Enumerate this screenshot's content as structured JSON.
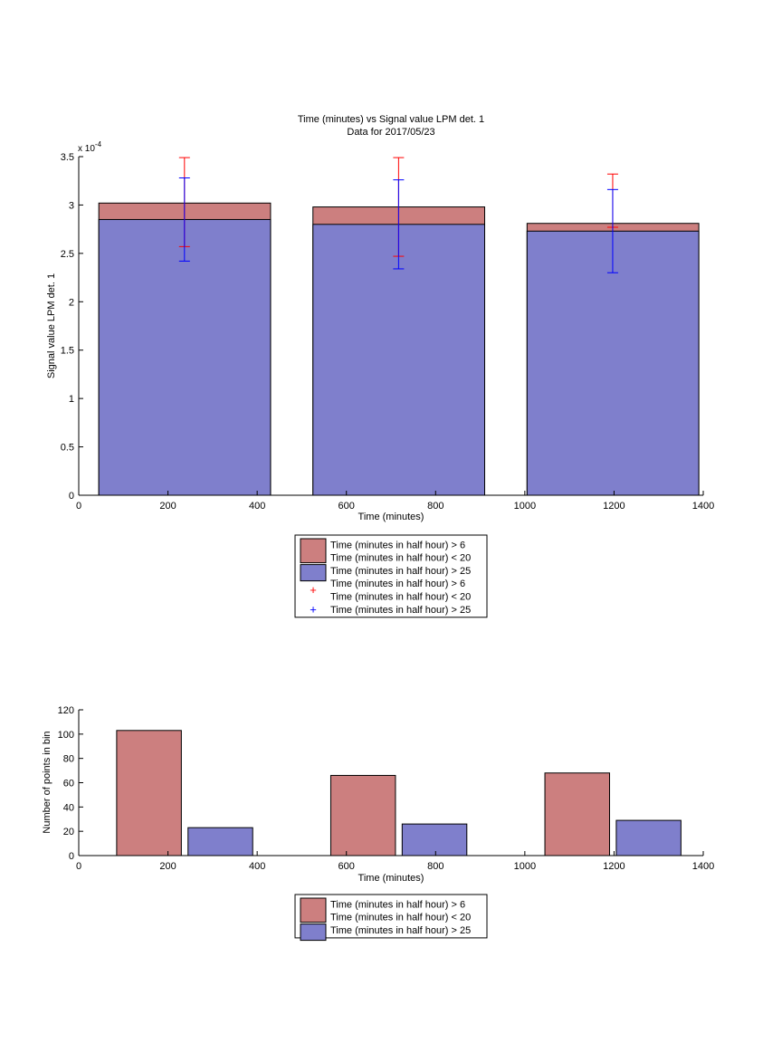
{
  "colors": {
    "red_fill": "#cc7f7f",
    "blue_fill": "#7f7fcc",
    "red_err": "#ff0000",
    "blue_err": "#0000ff"
  },
  "chart_data": [
    {
      "type": "bar",
      "title": "Time (minutes) vs Signal value LPM det. 1",
      "subtitle": "Data for 2017/05/23",
      "xlabel": "Time (minutes)",
      "ylabel": "Signal value LPM det. 1",
      "exponent_label": "x 10",
      "exponent_power": "-4",
      "xlim": [
        0,
        1400
      ],
      "ylim": [
        0,
        3.5
      ],
      "scale": "1e-4",
      "xticks": [
        "0",
        "200",
        "400",
        "600",
        "800",
        "1000",
        "1200",
        "1400"
      ],
      "yticks": [
        "0",
        "0.5",
        "1",
        "1.5",
        "2",
        "2.5",
        "3",
        "3.5"
      ],
      "bars": [
        {
          "x_start": 45,
          "x_end": 430,
          "red": 3.02,
          "blue": 2.85
        },
        {
          "x_start": 525,
          "x_end": 910,
          "red": 2.98,
          "blue": 2.8
        },
        {
          "x_start": 1005,
          "x_end": 1390,
          "red": 2.81,
          "blue": 2.73
        }
      ],
      "error_bars": [
        {
          "series": "red",
          "x": 237,
          "low": 2.57,
          "high": 3.49
        },
        {
          "series": "blue",
          "x": 237,
          "low": 2.42,
          "high": 3.28
        },
        {
          "series": "red",
          "x": 717,
          "low": 2.47,
          "high": 3.49
        },
        {
          "series": "blue",
          "x": 717,
          "low": 2.34,
          "high": 3.26
        },
        {
          "series": "red",
          "x": 1197,
          "low": 2.77,
          "high": 3.32
        },
        {
          "series": "blue",
          "x": 1197,
          "low": 2.3,
          "high": 3.16
        }
      ],
      "legend": {
        "position": "below",
        "entries": [
          {
            "kind": "patch",
            "series": "red",
            "lines": [
              "Time (minutes in half hour) > 6",
              "Time (minutes in half hour) < 20"
            ]
          },
          {
            "kind": "patch",
            "series": "blue",
            "lines": [
              "Time (minutes in half hour) > 25"
            ]
          },
          {
            "kind": "marker",
            "series": "red",
            "lines": [
              "Time (minutes in half hour) > 6",
              "Time (minutes in half hour) < 20"
            ]
          },
          {
            "kind": "marker",
            "series": "blue",
            "lines": [
              "Time (minutes in half hour) > 25"
            ]
          }
        ]
      }
    },
    {
      "type": "bar",
      "xlabel": "Time (minutes)",
      "ylabel": "Number of points in bin",
      "xlim": [
        0,
        1400
      ],
      "ylim": [
        0,
        120
      ],
      "xticks": [
        "0",
        "200",
        "400",
        "600",
        "800",
        "1000",
        "1200",
        "1400"
      ],
      "yticks": [
        "0",
        "20",
        "40",
        "60",
        "80",
        "100",
        "120"
      ],
      "bars": [
        {
          "series": "red",
          "x_start": 85,
          "x_end": 230,
          "value": 103
        },
        {
          "series": "blue",
          "x_start": 245,
          "x_end": 390,
          "value": 23
        },
        {
          "series": "red",
          "x_start": 565,
          "x_end": 710,
          "value": 66
        },
        {
          "series": "blue",
          "x_start": 725,
          "x_end": 870,
          "value": 26
        },
        {
          "series": "red",
          "x_start": 1045,
          "x_end": 1190,
          "value": 68
        },
        {
          "series": "blue",
          "x_start": 1205,
          "x_end": 1350,
          "value": 29
        }
      ],
      "legend": {
        "position": "below",
        "entries": [
          {
            "kind": "patch",
            "series": "red",
            "lines": [
              "Time (minutes in half hour) > 6",
              "Time (minutes in half hour) < 20"
            ]
          },
          {
            "kind": "patch",
            "series": "blue",
            "lines": [
              "Time (minutes in half hour) > 25"
            ]
          }
        ]
      }
    }
  ]
}
